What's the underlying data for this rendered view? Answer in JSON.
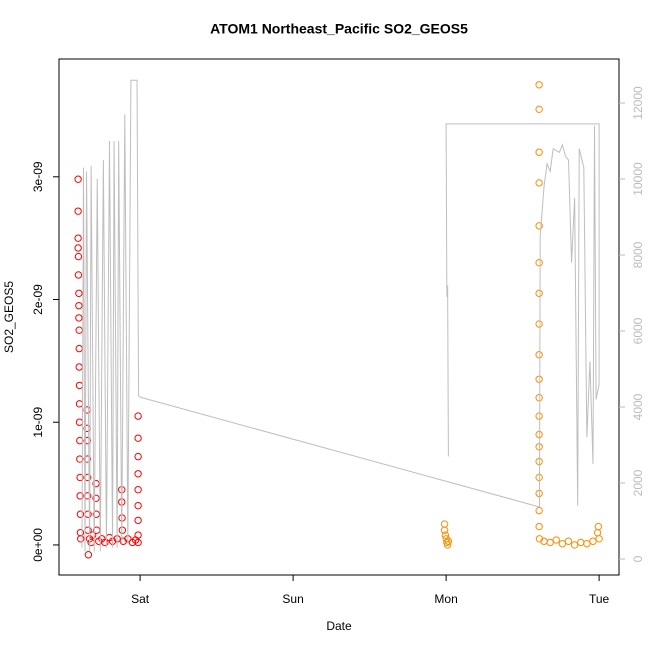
{
  "chart_data": {
    "type": "scatter",
    "title": "ATOM1 Northeast_Pacific SO2_GEOS5",
    "x_label": "Date",
    "y_label": "SO2_GEOS5",
    "xlim": [
      -0.53,
      3.13
    ],
    "xticks": [
      {
        "value": 0,
        "label": "Sat"
      },
      {
        "value": 1,
        "label": "Sun"
      },
      {
        "value": 2,
        "label": "Mon"
      },
      {
        "value": 3,
        "label": "Tue"
      }
    ],
    "ylim": [
      -2.45e-10,
      3.96e-09
    ],
    "yticks": [
      {
        "value": 0,
        "label": "0e+00"
      },
      {
        "value": 1e-09,
        "label": "1e-09"
      },
      {
        "value": 2e-09,
        "label": "2e-09"
      },
      {
        "value": 3e-09,
        "label": "3e-09"
      }
    ],
    "y2lim": [
      -421,
      13158
    ],
    "y2ticks": [
      0,
      2000,
      4000,
      6000,
      8000,
      10000,
      12000
    ],
    "grid": false,
    "series": [
      {
        "type": "scatter",
        "color": "#ff0000",
        "x": [
          -0.405,
          -0.405,
          -0.405,
          -0.405,
          -0.403,
          -0.403,
          -0.4,
          -0.4,
          -0.4,
          -0.398,
          -0.398,
          -0.398,
          -0.396,
          -0.396,
          -0.396,
          -0.394,
          -0.394,
          -0.392,
          -0.392,
          -0.39,
          -0.39,
          -0.388,
          -0.346,
          -0.346,
          -0.344,
          -0.344,
          -0.342,
          -0.342,
          -0.34,
          -0.34,
          -0.338,
          -0.33,
          -0.32,
          -0.31,
          -0.288,
          -0.288,
          -0.286,
          -0.284,
          -0.27,
          -0.25,
          -0.23,
          -0.2,
          -0.18,
          -0.15,
          -0.12,
          -0.12,
          -0.118,
          -0.116,
          -0.11,
          -0.08,
          -0.05,
          -0.03,
          -0.013,
          -0.013,
          -0.013,
          -0.013,
          -0.013,
          -0.013,
          -0.013,
          -0.013,
          -0.013
        ],
        "values": [
          2.98e-09,
          2.72e-09,
          2.5e-09,
          2.42e-09,
          2.35e-09,
          2.2e-09,
          2.05e-09,
          1.95e-09,
          1.85e-09,
          1.75e-09,
          1.6e-09,
          1.45e-09,
          1.3e-09,
          1.15e-09,
          1e-09,
          8.5e-10,
          7e-10,
          5.5e-10,
          4e-10,
          2.5e-10,
          1e-10,
          5e-11,
          1.1e-09,
          9.5e-10,
          8.5e-10,
          7e-10,
          5.5e-10,
          4e-10,
          2.5e-10,
          1.2e-10,
          -8e-11,
          5e-11,
          2e-11,
          8e-11,
          5e-10,
          3.8e-10,
          2.5e-10,
          1.2e-10,
          3e-11,
          5e-11,
          2e-11,
          6e-11,
          3e-11,
          5e-11,
          4.5e-10,
          3.5e-10,
          2.2e-10,
          1.2e-10,
          3e-11,
          5e-11,
          2e-11,
          4e-11,
          1.05e-09,
          8.7e-10,
          7.2e-10,
          5.8e-10,
          4.5e-10,
          3.2e-10,
          2e-10,
          8e-11,
          2e-11
        ]
      },
      {
        "type": "scatter",
        "color": "#ff8c00",
        "x": [
          1.99,
          1.99,
          1.995,
          2.0,
          2.005,
          2.01,
          2.015,
          2.608,
          2.608,
          2.608,
          2.608,
          2.608,
          2.608,
          2.608,
          2.608,
          2.608,
          2.608,
          2.608,
          2.608,
          2.608,
          2.608,
          2.608,
          2.608,
          2.608,
          2.608,
          2.608,
          2.61,
          2.64,
          2.68,
          2.72,
          2.76,
          2.8,
          2.84,
          2.88,
          2.92,
          2.96,
          2.99,
          2.995,
          3.0
        ],
        "values": [
          1.7e-10,
          1.2e-10,
          8e-11,
          5e-11,
          2e-11,
          0,
          3e-11,
          3.75e-09,
          3.55e-09,
          3.2e-09,
          2.95e-09,
          2.6e-09,
          2.3e-09,
          2.05e-09,
          1.8e-09,
          1.55e-09,
          1.35e-09,
          1.2e-09,
          1.05e-09,
          9e-10,
          8e-10,
          6.8e-10,
          5.5e-10,
          4.2e-10,
          2.8e-10,
          1.5e-10,
          5e-11,
          3e-11,
          2e-11,
          4e-11,
          1e-11,
          3e-11,
          0,
          2e-11,
          1e-11,
          3e-11,
          1e-10,
          1.5e-10,
          5e-11
        ]
      },
      {
        "type": "line",
        "axis": "y2",
        "color": "#bebebe",
        "x": [
          -0.38,
          -0.37,
          -0.36,
          -0.35,
          -0.33,
          -0.32,
          -0.3,
          -0.28,
          -0.26,
          -0.24,
          -0.22,
          -0.2,
          -0.18,
          -0.17,
          -0.15,
          -0.14,
          -0.12,
          -0.1,
          -0.08,
          -0.06,
          -0.02,
          -0.01,
          0.0,
          2.61,
          2.615,
          2.64,
          2.66,
          2.68,
          2.7,
          2.74,
          2.76,
          2.78,
          2.8,
          2.82,
          2.84,
          2.86,
          2.87,
          2.9,
          2.92,
          2.94,
          2.96,
          2.97,
          2.98,
          3.0,
          3.0,
          2.0,
          2.005,
          2.01,
          2.015
        ],
        "values": [
          300,
          10300,
          200,
          10200,
          200,
          10350,
          200,
          10000,
          200,
          10500,
          300,
          11000,
          300,
          11000,
          300,
          11000,
          400,
          11700,
          400,
          12600,
          12600,
          4300,
          4260,
          1370,
          8500,
          9800,
          10400,
          10200,
          10800,
          10700,
          10900,
          10600,
          10500,
          7800,
          9500,
          1400,
          10800,
          10300,
          3200,
          5200,
          2500,
          11400,
          4200,
          4600,
          11450,
          11450,
          6900,
          7200,
          2700
        ]
      }
    ]
  }
}
